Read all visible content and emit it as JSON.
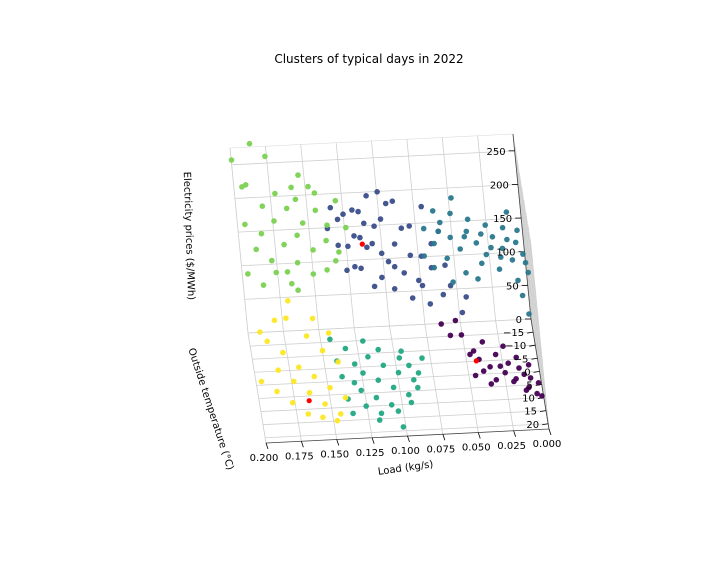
{
  "chart_data": {
    "type": "scatter3d",
    "title": "Clusters of typical days in 2022",
    "xlabel": "Load (kg/s)",
    "ylabel": "Outside temperature (°C)",
    "zlabel": "Electricity prices ($/MWh)",
    "xlim": [
      0.0,
      0.2
    ],
    "ylim": [
      -20,
      22
    ],
    "zlim": [
      0,
      275
    ],
    "x_ticks": [
      "0.200",
      "0.175",
      "0.150",
      "0.125",
      "0.100",
      "0.075",
      "0.050",
      "0.025",
      "0.000"
    ],
    "y_ticks": [
      "−15",
      "−10",
      "−5",
      "0",
      "5",
      "10",
      "15",
      "20"
    ],
    "z_ticks": [
      "0",
      "50",
      "100",
      "150",
      "200",
      "250"
    ],
    "x_tick_values": [
      0.2,
      0.175,
      0.15,
      0.125,
      0.1,
      0.075,
      0.05,
      0.025,
      0.0
    ],
    "y_tick_values": [
      -15,
      -10,
      -5,
      0,
      5,
      10,
      15,
      20
    ],
    "z_tick_values": [
      0,
      50,
      100,
      150,
      200,
      250
    ],
    "grid": true,
    "colors": {
      "purple": "#440154",
      "indigo": "#3b4e8a",
      "teal": "#2a788e",
      "green": "#22a884",
      "lightgreen": "#7ad151",
      "yellow": "#fde725",
      "centroid": "#ff0000"
    },
    "series": [
      {
        "color": "#440154",
        "points": [
          [
            0.038,
            -2,
            40
          ],
          [
            0.03,
            2,
            36
          ],
          [
            0.022,
            4,
            30
          ],
          [
            0.015,
            6,
            30
          ],
          [
            0.012,
            8,
            28
          ],
          [
            0.008,
            10,
            30
          ],
          [
            0.045,
            0,
            35
          ],
          [
            0.035,
            4,
            26
          ],
          [
            0.025,
            6,
            24
          ],
          [
            0.018,
            8,
            22
          ],
          [
            0.01,
            12,
            24
          ],
          [
            0.005,
            14,
            22
          ],
          [
            0.052,
            -4,
            44
          ],
          [
            0.042,
            2,
            30
          ],
          [
            0.028,
            6,
            34
          ],
          [
            0.02,
            10,
            26
          ],
          [
            0.003,
            12,
            30
          ],
          [
            0.032,
            8,
            22
          ],
          [
            0.06,
            -2,
            52
          ],
          [
            0.048,
            2,
            38
          ],
          [
            0.04,
            6,
            28
          ],
          [
            0.016,
            4,
            38
          ],
          [
            0.012,
            12,
            20
          ],
          [
            0.055,
            -6,
            58
          ],
          [
            0.002,
            16,
            26
          ],
          [
            0.036,
            10,
            24
          ],
          [
            0.024,
            0,
            40
          ],
          [
            0.065,
            -8,
            46
          ],
          [
            0.046,
            6,
            22
          ],
          [
            0.008,
            6,
            34
          ]
        ]
      },
      {
        "color": "#3b4e8a",
        "points": [
          [
            0.12,
            -10,
            175
          ],
          [
            0.112,
            -8,
            165
          ],
          [
            0.105,
            -12,
            180
          ],
          [
            0.098,
            -6,
            150
          ],
          [
            0.13,
            -14,
            185
          ],
          [
            0.125,
            -10,
            160
          ],
          [
            0.118,
            -4,
            150
          ],
          [
            0.108,
            -8,
            170
          ],
          [
            0.1,
            -12,
            190
          ],
          [
            0.092,
            -10,
            160
          ],
          [
            0.088,
            -4,
            140
          ],
          [
            0.082,
            -8,
            150
          ],
          [
            0.115,
            -14,
            195
          ],
          [
            0.122,
            -6,
            145
          ],
          [
            0.095,
            -14,
            205
          ],
          [
            0.086,
            -12,
            175
          ],
          [
            0.078,
            -6,
            120
          ],
          [
            0.072,
            -2,
            100
          ],
          [
            0.068,
            -8,
            130
          ],
          [
            0.062,
            -4,
            105
          ],
          [
            0.058,
            -10,
            125
          ],
          [
            0.11,
            -2,
            130
          ],
          [
            0.104,
            -4,
            135
          ],
          [
            0.096,
            -2,
            125
          ],
          [
            0.126,
            -12,
            200
          ],
          [
            0.132,
            -8,
            170
          ],
          [
            0.138,
            -12,
            180
          ],
          [
            0.108,
            -16,
            210
          ],
          [
            0.09,
            -16,
            200
          ],
          [
            0.08,
            -14,
            170
          ],
          [
            0.074,
            -10,
            140
          ],
          [
            0.066,
            -12,
            150
          ],
          [
            0.06,
            -14,
            160
          ],
          [
            0.102,
            -8,
            155
          ],
          [
            0.094,
            -6,
            142
          ],
          [
            0.116,
            -10,
            172
          ],
          [
            0.128,
            -4,
            148
          ],
          [
            0.119,
            -16,
            190
          ],
          [
            0.084,
            -2,
            110
          ],
          [
            0.056,
            -6,
            110
          ],
          [
            0.05,
            -2,
            85
          ],
          [
            0.046,
            -4,
            100
          ],
          [
            0.112,
            -12,
            185
          ],
          [
            0.1,
            -16,
            215
          ],
          [
            0.07,
            -16,
            190
          ],
          [
            0.134,
            -16,
            195
          ],
          [
            0.076,
            -4,
            120
          ]
        ]
      },
      {
        "color": "#2a788e",
        "points": [
          [
            0.07,
            -14,
            165
          ],
          [
            0.064,
            -12,
            150
          ],
          [
            0.058,
            -16,
            165
          ],
          [
            0.052,
            -14,
            150
          ],
          [
            0.046,
            -12,
            140
          ],
          [
            0.04,
            -16,
            150
          ],
          [
            0.034,
            -14,
            140
          ],
          [
            0.028,
            -12,
            130
          ],
          [
            0.022,
            -16,
            140
          ],
          [
            0.016,
            -14,
            130
          ],
          [
            0.01,
            -12,
            120
          ],
          [
            0.006,
            -16,
            130
          ],
          [
            0.002,
            -14,
            120
          ],
          [
            0.062,
            -18,
            175
          ],
          [
            0.056,
            -10,
            135
          ],
          [
            0.05,
            -18,
            170
          ],
          [
            0.044,
            -8,
            120
          ],
          [
            0.038,
            -18,
            160
          ],
          [
            0.032,
            -10,
            125
          ],
          [
            0.026,
            -18,
            150
          ],
          [
            0.02,
            -10,
            115
          ],
          [
            0.014,
            -18,
            145
          ],
          [
            0.008,
            -8,
            105
          ],
          [
            0.004,
            -18,
            140
          ],
          [
            0.0,
            -10,
            108
          ],
          [
            0.066,
            -8,
            130
          ],
          [
            0.054,
            -6,
            115
          ],
          [
            0.042,
            -14,
            150
          ],
          [
            0.03,
            -16,
            145
          ],
          [
            0.018,
            -12,
            125
          ],
          [
            0.012,
            -16,
            135
          ],
          [
            0.001,
            -12,
            115
          ],
          [
            0.048,
            -20,
            185
          ],
          [
            0.024,
            -14,
            132
          ],
          [
            0.036,
            -8,
            110
          ],
          [
            0.06,
            -14,
            160
          ],
          [
            0.01,
            -20,
            160
          ],
          [
            0.006,
            -6,
            90
          ],
          [
            0.003,
            -4,
            70
          ],
          [
            0.072,
            -10,
            140
          ]
        ]
      },
      {
        "color": "#22a884",
        "points": [
          [
            0.13,
            4,
            40
          ],
          [
            0.125,
            6,
            34
          ],
          [
            0.12,
            2,
            42
          ],
          [
            0.115,
            8,
            30
          ],
          [
            0.11,
            4,
            36
          ],
          [
            0.105,
            10,
            26
          ],
          [
            0.1,
            6,
            32
          ],
          [
            0.095,
            12,
            22
          ],
          [
            0.09,
            8,
            28
          ],
          [
            0.135,
            0,
            48
          ],
          [
            0.128,
            10,
            24
          ],
          [
            0.118,
            12,
            20
          ],
          [
            0.112,
            0,
            44
          ],
          [
            0.108,
            14,
            16
          ],
          [
            0.098,
            2,
            38
          ],
          [
            0.092,
            4,
            34
          ],
          [
            0.088,
            10,
            24
          ],
          [
            0.14,
            6,
            30
          ],
          [
            0.132,
            8,
            28
          ],
          [
            0.122,
            -2,
            50
          ],
          [
            0.116,
            16,
            12
          ],
          [
            0.104,
            16,
            14
          ],
          [
            0.096,
            0,
            40
          ],
          [
            0.086,
            6,
            30
          ],
          [
            0.145,
            -2,
            55
          ],
          [
            0.138,
            12,
            20
          ],
          [
            0.126,
            14,
            16
          ],
          [
            0.102,
            20,
            6
          ],
          [
            0.094,
            14,
            18
          ],
          [
            0.142,
            2,
            38
          ],
          [
            0.082,
            2,
            36
          ],
          [
            0.118,
            18,
            10
          ],
          [
            0.136,
            16,
            14
          ]
        ]
      },
      {
        "color": "#7ad151",
        "points": [
          [
            0.19,
            -8,
            170
          ],
          [
            0.185,
            -10,
            185
          ],
          [
            0.18,
            -6,
            160
          ],
          [
            0.175,
            -12,
            195
          ],
          [
            0.17,
            -8,
            175
          ],
          [
            0.165,
            -14,
            205
          ],
          [
            0.16,
            -10,
            180
          ],
          [
            0.155,
            -12,
            190
          ],
          [
            0.15,
            -8,
            165
          ],
          [
            0.145,
            -14,
            200
          ],
          [
            0.14,
            -10,
            170
          ],
          [
            0.135,
            -6,
            155
          ],
          [
            0.13,
            -16,
            205
          ],
          [
            0.125,
            -12,
            180
          ],
          [
            0.195,
            -14,
            240
          ],
          [
            0.2,
            -18,
            265
          ],
          [
            0.198,
            -4,
            150
          ],
          [
            0.192,
            -16,
            235
          ],
          [
            0.188,
            -2,
            140
          ],
          [
            0.182,
            -14,
            210
          ],
          [
            0.178,
            -4,
            150
          ],
          [
            0.172,
            -16,
            220
          ],
          [
            0.168,
            -2,
            140
          ],
          [
            0.162,
            -6,
            155
          ],
          [
            0.158,
            -16,
            210
          ],
          [
            0.152,
            -4,
            145
          ],
          [
            0.148,
            -18,
            220
          ],
          [
            0.142,
            -4,
            150
          ],
          [
            0.138,
            -12,
            185
          ],
          [
            0.132,
            -8,
            160
          ],
          [
            0.186,
            -20,
            280
          ],
          [
            0.176,
            -20,
            260
          ],
          [
            0.196,
            -10,
            200
          ],
          [
            0.164,
            -2,
            130
          ],
          [
            0.154,
            -20,
            230
          ],
          [
            0.144,
            -18,
            210
          ],
          [
            0.17,
            -4,
            150
          ],
          [
            0.16,
            -18,
            220
          ]
        ]
      },
      {
        "color": "#fde725",
        "points": [
          [
            0.195,
            8,
            110
          ],
          [
            0.19,
            4,
            80
          ],
          [
            0.185,
            10,
            60
          ],
          [
            0.18,
            6,
            70
          ],
          [
            0.175,
            12,
            50
          ],
          [
            0.17,
            8,
            55
          ],
          [
            0.165,
            14,
            40
          ],
          [
            0.16,
            10,
            48
          ],
          [
            0.155,
            16,
            30
          ],
          [
            0.15,
            12,
            38
          ],
          [
            0.145,
            18,
            22
          ],
          [
            0.14,
            14,
            30
          ],
          [
            0.198,
            14,
            60
          ],
          [
            0.188,
            16,
            52
          ],
          [
            0.178,
            18,
            42
          ],
          [
            0.168,
            20,
            32
          ],
          [
            0.158,
            20,
            26
          ],
          [
            0.148,
            20,
            20
          ],
          [
            0.175,
            2,
            105
          ],
          [
            0.162,
            4,
            85
          ],
          [
            0.152,
            6,
            70
          ],
          [
            0.142,
            8,
            60
          ],
          [
            0.172,
            -2,
            115
          ],
          [
            0.156,
            0,
            95
          ],
          [
            0.146,
            2,
            80
          ],
          [
            0.183,
            0,
            95
          ]
        ]
      }
    ],
    "centroids": [
      {
        "color": "#ff0000",
        "point": [
          0.115,
          -8,
          170
        ]
      },
      {
        "color": "#ff0000",
        "point": [
          0.166,
          16,
          36
        ]
      },
      {
        "color": "#ff0000",
        "point": [
          0.044,
          2,
          28
        ]
      }
    ]
  }
}
